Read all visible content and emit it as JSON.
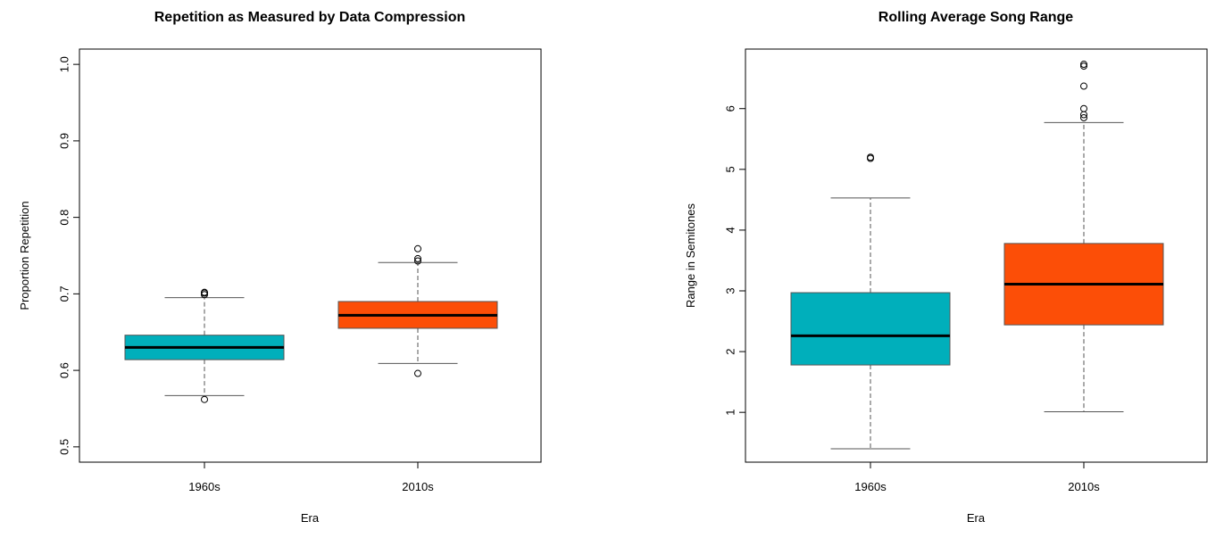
{
  "chart_data": [
    {
      "type": "boxplot",
      "title": "Repetition as Measured by Data Compression",
      "xlabel": "Era",
      "ylabel": "Proportion Repetition",
      "categories": [
        "1960s",
        "2010s"
      ],
      "ylim": [
        0.48,
        1.02
      ],
      "yticks": [
        "0.5",
        "0.6",
        "0.7",
        "0.8",
        "0.9",
        "1.0"
      ],
      "colors": [
        "#00AFBB",
        "#FC4E07"
      ],
      "grid": false,
      "boxes": [
        {
          "category": "1960s",
          "whisker_low": 0.567,
          "q1": 0.614,
          "median": 0.63,
          "q3": 0.646,
          "whisker_high": 0.695,
          "outliers": [
            0.562,
            0.699,
            0.701,
            0.702
          ]
        },
        {
          "category": "2010s",
          "whisker_low": 0.609,
          "q1": 0.655,
          "median": 0.672,
          "q3": 0.69,
          "whisker_high": 0.741,
          "outliers": [
            0.596,
            0.743,
            0.746,
            0.759
          ]
        }
      ]
    },
    {
      "type": "boxplot",
      "title": "Rolling Average Song Range",
      "xlabel": "Era",
      "ylabel": "Range in Semitones",
      "categories": [
        "1960s",
        "2010s"
      ],
      "ylim": [
        0.18,
        6.98
      ],
      "yticks": [
        "1",
        "2",
        "3",
        "4",
        "5",
        "6"
      ],
      "colors": [
        "#00AFBB",
        "#FC4E07"
      ],
      "grid": false,
      "boxes": [
        {
          "category": "1960s",
          "whisker_low": 0.4,
          "q1": 1.78,
          "median": 2.26,
          "q3": 2.97,
          "whisker_high": 4.53,
          "outliers": [
            5.18,
            5.2
          ]
        },
        {
          "category": "2010s",
          "whisker_low": 1.01,
          "q1": 2.44,
          "median": 3.11,
          "q3": 3.78,
          "whisker_high": 5.77,
          "outliers": [
            5.85,
            5.9,
            6.0,
            6.37,
            6.7,
            6.73
          ]
        }
      ]
    }
  ]
}
